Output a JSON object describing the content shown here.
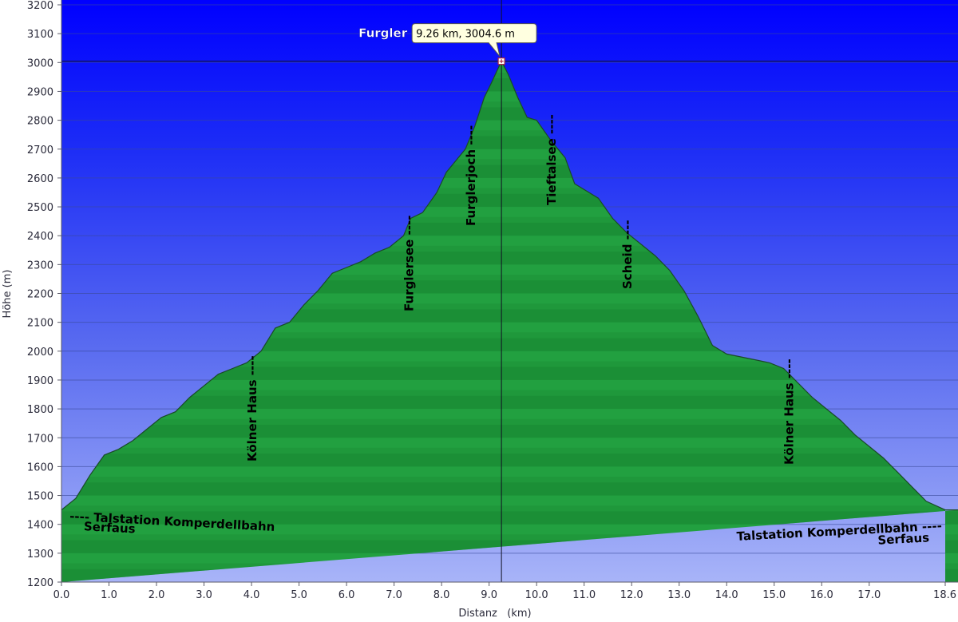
{
  "chart_data": {
    "type": "area",
    "title": "",
    "xlabel": "Distanz   (km)",
    "ylabel": "Höhe (m)",
    "xlim": [
      0.0,
      18.6
    ],
    "ylim": [
      1200,
      3200
    ],
    "x_ticks": [
      "0.0",
      "1.0",
      "2.0",
      "3.0",
      "4.0",
      "5.0",
      "6.0",
      "7.0",
      "8.0",
      "9.0",
      "10.0",
      "11.0",
      "12.0",
      "13.0",
      "14.0",
      "15.0",
      "16.0",
      "17.0",
      "18.6"
    ],
    "y_ticks": [
      "1200",
      "1300",
      "1400",
      "1500",
      "1600",
      "1700",
      "1800",
      "1900",
      "2000",
      "2100",
      "2200",
      "2300",
      "2400",
      "2500",
      "2600",
      "2700",
      "2800",
      "2900",
      "3000",
      "3100",
      "3200"
    ],
    "grid": true,
    "series": [
      {
        "x": [
          0.0,
          0.3,
          0.6,
          0.9,
          1.2,
          1.5,
          1.8,
          2.1,
          2.4,
          2.7,
          3.0,
          3.3,
          3.6,
          3.9,
          4.2,
          4.5,
          4.8,
          5.1,
          5.4,
          5.7,
          6.0,
          6.3,
          6.6,
          6.9,
          7.2,
          7.35,
          7.6,
          7.9,
          8.1,
          8.3,
          8.5,
          8.7,
          8.9,
          9.05,
          9.26,
          9.4,
          9.6,
          9.8,
          10.0,
          10.3,
          10.6,
          10.8,
          11.0,
          11.3,
          11.6,
          11.9,
          12.2,
          12.5,
          12.8,
          13.1,
          13.4,
          13.7,
          14.0,
          14.3,
          14.6,
          14.9,
          15.2,
          15.5,
          15.8,
          16.1,
          16.4,
          16.7,
          17.0,
          17.3,
          17.6,
          17.9,
          18.2,
          18.6
        ],
        "y": [
          1450,
          1490,
          1570,
          1640,
          1660,
          1690,
          1730,
          1770,
          1790,
          1840,
          1880,
          1920,
          1940,
          1960,
          2000,
          2080,
          2100,
          2160,
          2210,
          2270,
          2290,
          2310,
          2340,
          2360,
          2400,
          2460,
          2480,
          2550,
          2620,
          2660,
          2700,
          2780,
          2880,
          2930,
          3004.6,
          2960,
          2880,
          2810,
          2800,
          2730,
          2670,
          2580,
          2560,
          2530,
          2460,
          2410,
          2370,
          2330,
          2280,
          2210,
          2120,
          2020,
          1990,
          1980,
          1970,
          1960,
          1940,
          1890,
          1840,
          1800,
          1760,
          1710,
          1670,
          1630,
          1580,
          1530,
          1480,
          1450
        ]
      }
    ],
    "colors": {
      "sky_top": "#0000ff",
      "sky_bottom": "#a8b4f8",
      "area_fill": "#22a040",
      "area_band": "#137a2a",
      "grid": "#3a4a9a",
      "outline": "#1a4a28"
    },
    "annotations": [
      {
        "text": "Kölner Haus ----",
        "x": 4.0
      },
      {
        "text": "Furglersee ----",
        "x": 7.3
      },
      {
        "text": "Furglerjoch ----",
        "x": 8.6
      },
      {
        "text": "Tieftalsee ----",
        "x": 10.3
      },
      {
        "text": "Scheid ----",
        "x": 11.9
      },
      {
        "text": "Kölner Haus ----",
        "x": 15.3
      },
      {
        "text": "---- Talstation Komperdellbahn",
        "x": 0.1,
        "y": 1420
      },
      {
        "text": "Serfaus",
        "x": 0.5,
        "y": 1385
      },
      {
        "text": "Talstation Komperdellbahn ----",
        "x": 18.5,
        "y": 1420
      },
      {
        "text": "Serfaus",
        "x": 18.0,
        "y": 1390
      }
    ],
    "marker": {
      "name": "Furgler",
      "x": 9.26,
      "y": 3004.6,
      "label": "9.26 km, 3004.6 m"
    }
  }
}
